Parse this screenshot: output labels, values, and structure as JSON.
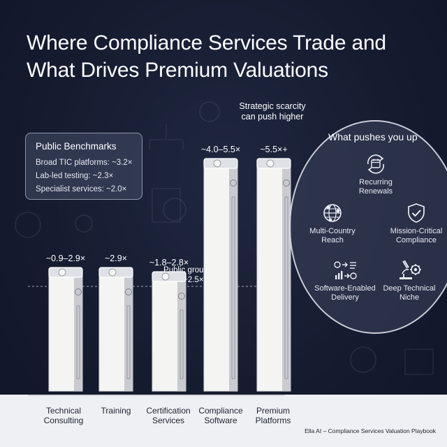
{
  "title_line1": "Where Compliance Services Trade and",
  "title_line2": "What Drives Premium Valuations",
  "benchmarks": {
    "title": "Public Benchmarks",
    "items": [
      "Broad TIC platforms: ~3.2×",
      "Lab-led testing: ~2.3×",
      "Specialist services: ~2.0×"
    ]
  },
  "drivers_panel": {
    "title": "What pushes you up",
    "drivers": [
      {
        "label": "Recurring\nRenewals",
        "icon": "calendar-cycle-icon"
      },
      {
        "label": "Multi-Country\nReach",
        "icon": "globe-icon"
      },
      {
        "label": "Mission-Critical\nCompliance",
        "icon": "shield-check-icon"
      },
      {
        "label": "Software-Enabled\nDelivery",
        "icon": "workflow-icon"
      },
      {
        "label": "Deep Technical\nNiche",
        "icon": "microscope-gear-icon"
      }
    ]
  },
  "footer": "Ella AI – Compliance Services Valuation Playbook",
  "chart_data": {
    "type": "bar",
    "categories": [
      "Technical\nConsulting",
      "Training",
      "Certification\nServices",
      "Compliance\nSoftware",
      "Premium\nPlatforms"
    ],
    "value_labels": [
      "~0.9–2.9×",
      "~2.9×",
      "~1.8–2.8×",
      "~4.0–5.5×",
      "~5.5×+"
    ],
    "values": [
      2.9,
      2.9,
      2.8,
      5.5,
      5.5
    ],
    "ranges": [
      [
        0.9,
        2.9
      ],
      [
        2.9,
        2.9
      ],
      [
        1.8,
        2.8
      ],
      [
        4.0,
        5.5
      ],
      [
        5.5,
        null
      ]
    ],
    "ylim": [
      0,
      6.5
    ],
    "reference_line": {
      "value": 2.5,
      "label": "Public group\navg ~2.5×"
    },
    "annotation": "Strategic scarcity\ncan push higher",
    "colors": {
      "bar_fill": "#f4f4f2",
      "bar_side": "#c9cbd0",
      "label": "#ffffff",
      "floor": "#eef0f3"
    }
  }
}
